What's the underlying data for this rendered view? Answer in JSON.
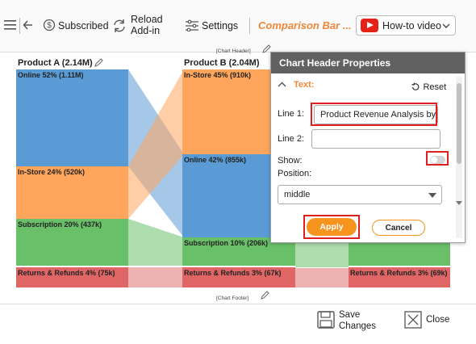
{
  "toolbar": {
    "subscribed_label": "Subscribed",
    "reload_line1": "Reload",
    "reload_line2": "Add-in",
    "settings_label": "Settings",
    "app_title": "Comparison Bar ...",
    "howto_label": "How-to video"
  },
  "chart": {
    "header_placeholder": "[Chart Header]",
    "footer_placeholder": "[Chart Footer]",
    "product_a": {
      "title": "Product A (2.14M)",
      "segments": [
        {
          "label": "Online 52% (1.11M)",
          "color": "#5b9bd5"
        },
        {
          "label": "In-Store 24% (520k)",
          "color": "#ffa55c"
        },
        {
          "label": "Subscription 20% (437k)",
          "color": "#6abf69"
        },
        {
          "label": "Returns & Refunds 4% (75k)",
          "color": "#e06666"
        }
      ]
    },
    "product_b": {
      "title": "Product B (2.04M)",
      "segments": [
        {
          "label": "In-Store 45% (910k)",
          "color": "#ffa55c"
        },
        {
          "label": "Online 42% (855k)",
          "color": "#5b9bd5"
        },
        {
          "label": "Subscription 10% (206k)",
          "color": "#6abf69"
        },
        {
          "label": "Returns & Refunds 3% (67k)",
          "color": "#e06666"
        }
      ]
    },
    "product_c": {
      "title": "",
      "segments": [
        {
          "label": "",
          "color": "#6abf69"
        },
        {
          "label": "Returns & Refunds 3% (69k)",
          "color": "#e06666"
        }
      ]
    }
  },
  "panel": {
    "title": "Chart Header Properties",
    "section": "Text:",
    "reset_label": "Reset",
    "line1_label": "Line 1:",
    "line1_value": "Product Revenue Analysis by",
    "line2_label": "Line 2:",
    "line2_value": "",
    "show_label": "Show:",
    "position_label": "Position:",
    "position_value": "middle",
    "apply_label": "Apply",
    "cancel_label": "Cancel"
  },
  "footer": {
    "save_line1": "Save",
    "save_line2": "Changes",
    "close_label": "Close"
  }
}
